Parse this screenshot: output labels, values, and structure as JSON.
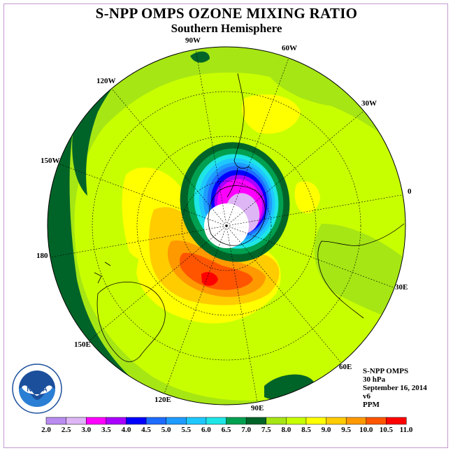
{
  "header": {
    "title": "S-NPP OMPS OZONE MIXING RATIO",
    "subtitle": "Southern Hemisphere"
  },
  "map": {
    "projection": "south-polar-stereographic",
    "longitude_labels": [
      "0",
      "30E",
      "60E",
      "90E",
      "120E",
      "150E",
      "180",
      "150W",
      "120W",
      "90W",
      "60W",
      "30W"
    ],
    "ozone_hole_field": "low values near pole, maximum band toward Indian/Australian sector"
  },
  "info": {
    "instrument": "S-NPP OMPS",
    "pressure_level": "30 hPa",
    "date": "September 16, 2014",
    "version": "v6",
    "units": "PPM"
  },
  "logo": {
    "text": "NOAA",
    "ring_text": "NATIONAL OCEANIC AND ATMOSPHERIC ADMINISTRATION · U.S. DEPARTMENT OF COMMERCE"
  },
  "chart_data": {
    "type": "heatmap",
    "title": "S-NPP OMPS OZONE MIXING RATIO",
    "subtitle": "Southern Hemisphere",
    "units": "PPM",
    "colorbar": {
      "levels": [
        2.0,
        2.5,
        3.0,
        3.5,
        4.0,
        4.5,
        5.0,
        5.5,
        6.0,
        6.5,
        7.0,
        7.5,
        8.0,
        8.5,
        9.0,
        9.5,
        10.0,
        10.5,
        11.0
      ],
      "tick_labels": [
        "2.0",
        "2.5",
        "3.0",
        "3.5",
        "4.0",
        "4.5",
        "5.0",
        "5.5",
        "6.0",
        "6.5",
        "7.0",
        "7.5",
        "8.0",
        "8.5",
        "9.0",
        "9.5",
        "10.0",
        "10.5",
        "11.0"
      ],
      "colors": [
        "#b98cf0",
        "#deb6f5",
        "#ff00ff",
        "#aa00ff",
        "#0000ff",
        "#1e6cff",
        "#1e9cff",
        "#1ec8ff",
        "#1ee6e6",
        "#00a050",
        "#006428",
        "#a6e614",
        "#c8ff00",
        "#ffff00",
        "#ffcc00",
        "#ff9900",
        "#ff5500",
        "#ff0000",
        "#8c5a3c"
      ]
    },
    "field_regions": [
      {
        "band": "7.5-8.0",
        "value": 7.75,
        "description": "outer midlatitude band"
      },
      {
        "band": "7.0-7.5",
        "value": 7.25,
        "description": "Pacific sector band"
      },
      {
        "band": "8.0-8.5",
        "value": 8.25,
        "description": "main hemispheric field"
      },
      {
        "band": "8.5-9.0",
        "value": 8.75,
        "description": "yellow patches"
      },
      {
        "band": "9.0-9.5",
        "value": 9.25,
        "description": "collar toward Australia"
      },
      {
        "band": "9.5-10.0",
        "value": 9.75,
        "description": "orange maximum"
      },
      {
        "band": "10.0-10.5",
        "value": 10.25,
        "description": "red maximum south of Australia"
      },
      {
        "band": "6.0-7.0",
        "value": 6.5,
        "description": "vortex edge green ring"
      },
      {
        "band": "4.0-6.0",
        "value": 5.0,
        "description": "blue gradient"
      },
      {
        "band": "3.0-3.5",
        "value": 3.25,
        "description": "magenta ozone hole"
      },
      {
        "band": "2.0-3.0",
        "value": 2.5,
        "description": "lavender hole core"
      }
    ]
  }
}
